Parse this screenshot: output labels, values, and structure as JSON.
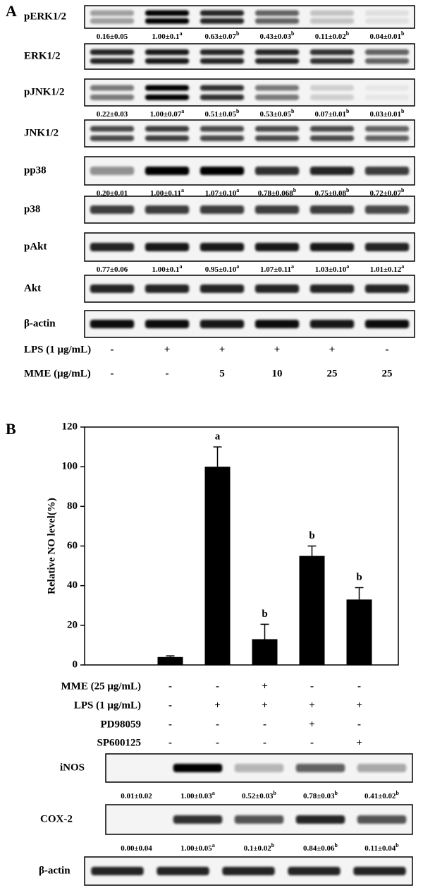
{
  "panel_a": {
    "label": "A",
    "blots": [
      {
        "name": "pERK1/2",
        "quant": [
          {
            "text": "0.16±0.05"
          },
          {
            "text": "1.00±0.1",
            "sup": "a"
          },
          {
            "text": "0.63±0.07",
            "sup": "b"
          },
          {
            "text": "0.43±0.03",
            "sup": "b"
          },
          {
            "text": "0.11±0.02",
            "sup": "b"
          },
          {
            "text": "0.04±0.01",
            "sup": "b"
          }
        ]
      },
      {
        "name": "ERK1/2"
      },
      {
        "name": "pJNK1/2",
        "quant": [
          {
            "text": "0.22±0.03"
          },
          {
            "text": "1.00±0.07",
            "sup": "a"
          },
          {
            "text": "0.51±0.05",
            "sup": "b"
          },
          {
            "text": "0.53±0.05",
            "sup": "b"
          },
          {
            "text": "0.07±0.01",
            "sup": "b"
          },
          {
            "text": "0.03±0.01",
            "sup": "b"
          }
        ]
      },
      {
        "name": "JNK1/2"
      },
      {
        "name": "pp38",
        "quant": [
          {
            "text": "0.20±0.01"
          },
          {
            "text": "1.00±0.11",
            "sup": "a"
          },
          {
            "text": "1.07±0.10",
            "sup": "a"
          },
          {
            "text": "0.78±0.068",
            "sup": "b"
          },
          {
            "text": "0.75±0.08",
            "sup": "b"
          },
          {
            "text": "0.72±0.07",
            "sup": "b"
          }
        ]
      },
      {
        "name": "p38"
      },
      {
        "name": "pAkt",
        "quant": [
          {
            "text": "0.77±0.06"
          },
          {
            "text": "1.00±0.1",
            "sup": "a"
          },
          {
            "text": "0.95±0.10",
            "sup": "a"
          },
          {
            "text": "1.07±0.11",
            "sup": "a"
          },
          {
            "text": "1.03±0.10",
            "sup": "a"
          },
          {
            "text": "1.01±0.12",
            "sup": "a"
          }
        ]
      },
      {
        "name": "Akt"
      },
      {
        "name": "β-actin"
      }
    ],
    "treatments": [
      {
        "name": "LPS (1 μg/mL)",
        "signs": [
          "-",
          "+",
          "+",
          "+",
          "+",
          "-"
        ]
      },
      {
        "name": "MME (μg/mL)",
        "signs": [
          "-",
          "-",
          "5",
          "10",
          "25",
          "25"
        ]
      }
    ]
  },
  "chart_data": {
    "type": "bar",
    "panel_label": "B",
    "ylabel": "Relative NO level(%)",
    "categories": [
      null,
      null,
      null,
      null,
      null
    ],
    "values": [
      4,
      100,
      13,
      55,
      33
    ],
    "errors": [
      0.6,
      10,
      7.5,
      5,
      6
    ],
    "annotations": [
      null,
      "a",
      "b",
      "b",
      "b"
    ],
    "color": "#000000",
    "ylim": [
      0,
      120
    ],
    "yticks": [
      0,
      20,
      40,
      60,
      80,
      100,
      120
    ]
  },
  "panel_b": {
    "treatments": [
      {
        "name": "MME (25 μg/mL)",
        "signs": [
          "-",
          "-",
          "+",
          "-",
          "-"
        ]
      },
      {
        "name": "LPS (1 μg/mL)",
        "signs": [
          "-",
          "+",
          "+",
          "+",
          "+"
        ]
      },
      {
        "name": "PD98059",
        "signs": [
          "-",
          "-",
          "-",
          "+",
          "-"
        ]
      },
      {
        "name": "SP600125",
        "signs": [
          "-",
          "-",
          "-",
          "-",
          "+"
        ]
      }
    ],
    "blots": [
      {
        "name": "iNOS",
        "quant": [
          {
            "text": "0.01±0.02"
          },
          {
            "text": "1.00±0.03",
            "sup": "a"
          },
          {
            "text": "0.52±0.03",
            "sup": "b"
          },
          {
            "text": "0.78±0.03",
            "sup": "b"
          },
          {
            "text": "0.41±0.02",
            "sup": "b"
          }
        ]
      },
      {
        "name": "COX-2",
        "quant": [
          {
            "text": "0.00±0.04"
          },
          {
            "text": "1.00±0.05",
            "sup": "a"
          },
          {
            "text": "0.1±0.02",
            "sup": "b"
          },
          {
            "text": "0.84±0.06",
            "sup": "b"
          },
          {
            "text": "0.11±0.04",
            "sup": "b"
          }
        ]
      },
      {
        "name": "β-actin"
      }
    ]
  }
}
